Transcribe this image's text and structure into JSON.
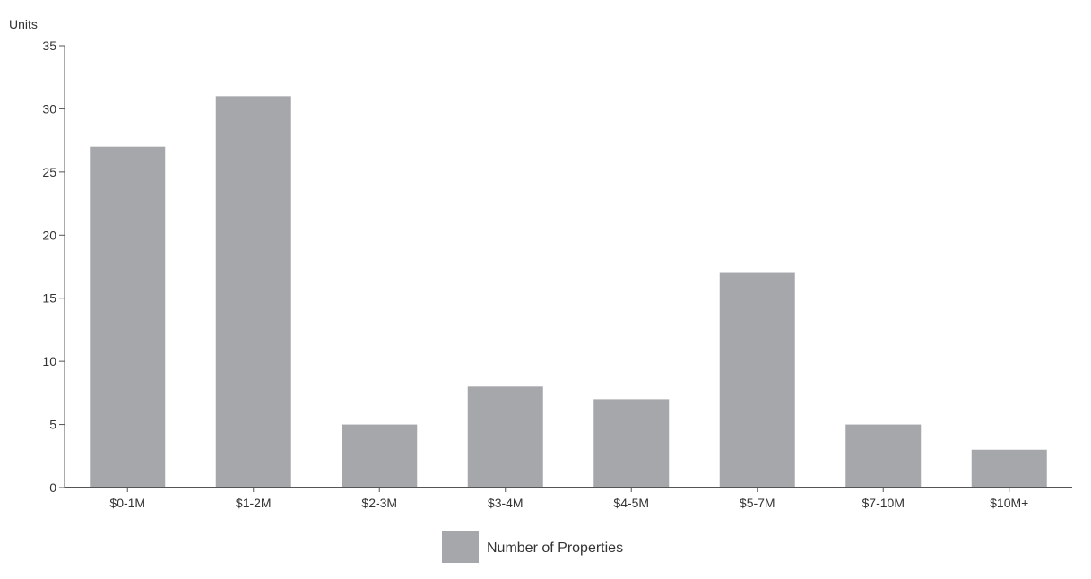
{
  "chart_data": {
    "type": "bar",
    "ylabel": "Units",
    "xlabel": "",
    "categories": [
      "$0-1M",
      "$1-2M",
      "$2-3M",
      "$3-4M",
      "$4-5M",
      "$5-7M",
      "$7-10M",
      "$10M+"
    ],
    "series": [
      {
        "name": "Number of Properties",
        "values": [
          27,
          31,
          5,
          8,
          7,
          17,
          5,
          3
        ],
        "color": "#a6a7ab"
      }
    ],
    "ylim": [
      0,
      35
    ],
    "yticks": [
      0,
      5,
      10,
      15,
      20,
      25,
      30,
      35
    ],
    "grid": false,
    "legend_position": "bottom-center"
  },
  "colors": {
    "bar": "#a6a7ab",
    "axis": "#555555",
    "text": "#333333"
  }
}
